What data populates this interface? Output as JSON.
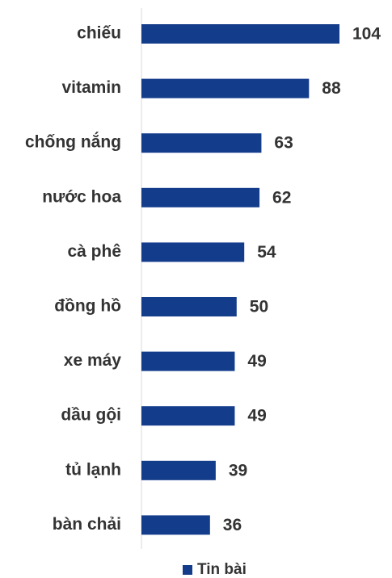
{
  "chart_data": {
    "type": "bar",
    "orientation": "horizontal",
    "categories": [
      "chiếu",
      "vitamin",
      "chống nắng",
      "nước hoa",
      "cà phê",
      "đồng hồ",
      "xe máy",
      "dầu gội",
      "tủ lạnh",
      "bàn chải"
    ],
    "series": [
      {
        "name": "Tin bài",
        "color": "#133c8b",
        "values": [
          104,
          88,
          63,
          62,
          54,
          50,
          49,
          49,
          39,
          36
        ]
      }
    ],
    "legend": "bottom"
  }
}
